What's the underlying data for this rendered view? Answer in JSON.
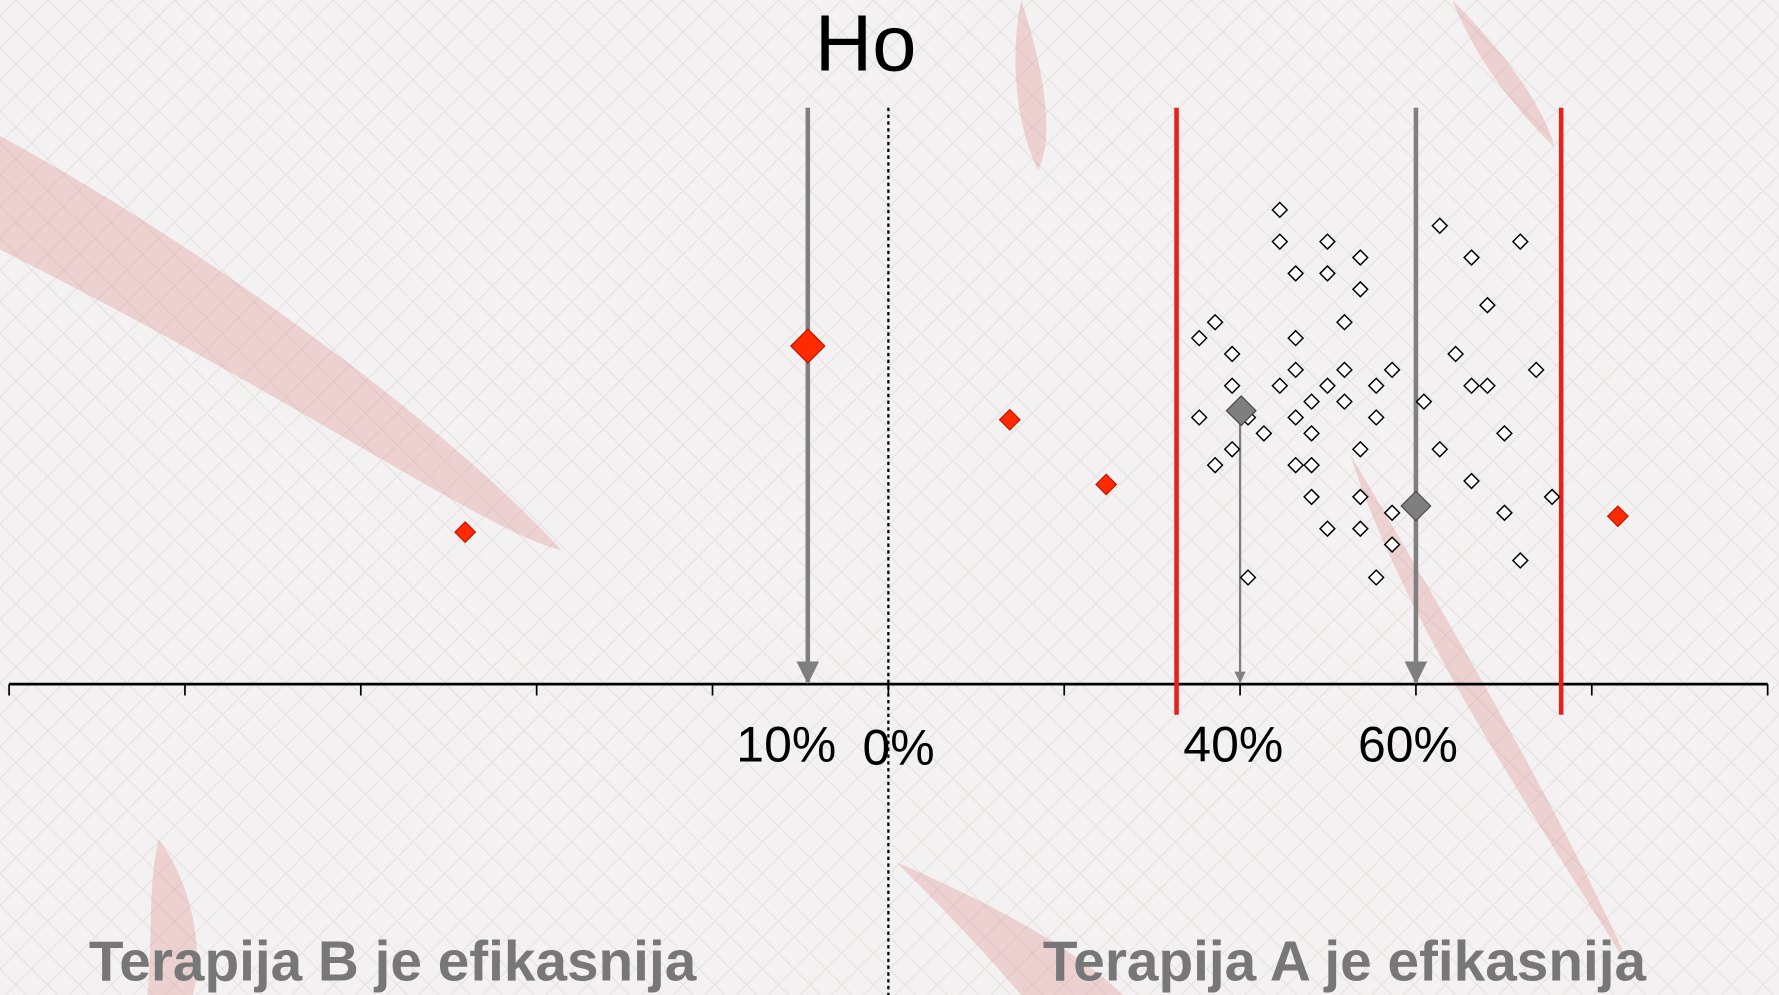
{
  "title": "Ho",
  "axis_labels": [
    "10%",
    "0%",
    "40%",
    "60%"
  ],
  "bottom_labels": [
    "Terapija B je efikasnija",
    "Terapija A je efikasnija"
  ]
}
